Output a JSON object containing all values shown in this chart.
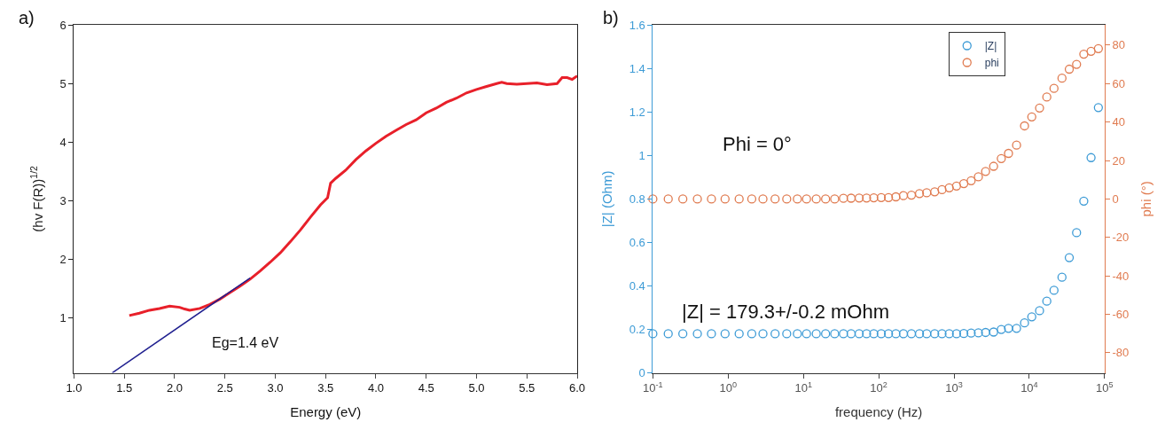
{
  "chart_data": [
    {
      "type": "line",
      "xlabel": "Energy (eV)",
      "ylabel": "(hv F(R))$^{1/2}$",
      "xlim": [
        1.0,
        6.0
      ],
      "ylim": [
        0.06,
        6
      ],
      "xticks": [
        {
          "value": 1.0,
          "label": "1.0"
        },
        1.5,
        {
          "value": 2.0,
          "label": "2.0"
        },
        2.5,
        {
          "value": 3.0,
          "label": "3.0"
        },
        3.5,
        {
          "value": 4.0,
          "label": "4.0"
        },
        4.5,
        {
          "value": 5.0,
          "label": "5.0"
        },
        5.5,
        {
          "value": 6.0,
          "label": "6.0"
        }
      ],
      "yticks": [
        1,
        2,
        3,
        4,
        5,
        6
      ],
      "legend": false,
      "marker": "none",
      "line_style": "solid",
      "series": [
        {
          "color": "#e8202a",
          "x": [
            1.55,
            1.65,
            1.75,
            1.85,
            1.95,
            2.05,
            2.1,
            2.15,
            2.25,
            2.35,
            2.45,
            2.55,
            2.65,
            2.75,
            2.85,
            2.95,
            3.05,
            3.15,
            3.25,
            3.35,
            3.45,
            3.52,
            3.55,
            3.6,
            3.7,
            3.8,
            3.9,
            4.0,
            4.1,
            4.2,
            4.3,
            4.4,
            4.5,
            4.6,
            4.7,
            4.8,
            4.9,
            5.0,
            5.1,
            5.2,
            5.25,
            5.3,
            5.4,
            5.5,
            5.6,
            5.7,
            5.8,
            5.85,
            5.9,
            5.95,
            6.0
          ],
          "values": [
            1.04,
            1.08,
            1.13,
            1.16,
            1.2,
            1.18,
            1.15,
            1.13,
            1.16,
            1.23,
            1.32,
            1.43,
            1.54,
            1.66,
            1.8,
            1.95,
            2.11,
            2.3,
            2.5,
            2.72,
            2.93,
            3.05,
            3.3,
            3.38,
            3.52,
            3.7,
            3.85,
            3.98,
            4.1,
            4.2,
            4.3,
            4.38,
            4.5,
            4.58,
            4.68,
            4.75,
            4.84,
            4.9,
            4.95,
            5.0,
            5.02,
            5.0,
            4.99,
            5.0,
            5.01,
            4.98,
            5.0,
            5.1,
            5.1,
            5.07,
            5.13
          ]
        },
        {
          "color": "#1f1f8f",
          "x": [
            1.38,
            2.75
          ],
          "values": [
            0.06,
            1.68
          ]
        }
      ],
      "annotations": [
        "a)",
        "Eg=1.4 eV"
      ]
    },
    {
      "type": "scatter",
      "xlabel": "frequency (Hz)",
      "ylabel": "|Z| (Ohm)",
      "y2label": "phi (°)",
      "log": "x",
      "xlim": [
        0.1,
        100000
      ],
      "ylim": [
        0,
        1.6
      ],
      "y2lim": [
        -90.5,
        90.5
      ],
      "xticks": [
        {
          "value": 0.1,
          "label": "10$^{-1}$"
        },
        {
          "value": 1,
          "label": "10$^{0}$"
        },
        {
          "value": 10,
          "label": "10$^{1}$"
        },
        {
          "value": 100,
          "label": "10$^{2}$"
        },
        {
          "value": 1000,
          "label": "10$^{3}$"
        },
        {
          "value": 10000,
          "label": "10$^{4}$"
        },
        {
          "value": 100000,
          "label": "10$^{5}$"
        }
      ],
      "yticks": [
        0,
        0.2,
        0.4,
        0.6,
        0.8,
        1,
        1.2,
        1.4,
        1.6
      ],
      "y2ticks": [
        -80,
        -60,
        -40,
        -20,
        0,
        20,
        40,
        60,
        80
      ],
      "legend": "top right",
      "marker": "circle",
      "x": [
        0.1,
        0.16,
        0.25,
        0.39,
        0.6,
        0.91,
        1.4,
        2.06,
        2.9,
        4.2,
        6.0,
        8.3,
        11,
        14.8,
        19.7,
        26,
        34,
        43,
        55,
        69,
        86,
        108,
        135,
        169,
        213,
        272,
        348,
        434,
        554,
        693,
        865,
        1080,
        1350,
        1690,
        2110,
        2630,
        3360,
        4250,
        5300,
        6780,
        8650,
        10800,
        13700,
        17100,
        21300,
        27200,
        34000,
        42500,
        53000,
        66200,
        82800
      ],
      "series": [
        {
          "name": "|Z|",
          "color": "#3d9bd6",
          "values": [
            0.18,
            0.18,
            0.18,
            0.18,
            0.18,
            0.18,
            0.18,
            0.18,
            0.18,
            0.18,
            0.18,
            0.18,
            0.18,
            0.18,
            0.18,
            0.18,
            0.18,
            0.18,
            0.18,
            0.18,
            0.18,
            0.18,
            0.18,
            0.18,
            0.18,
            0.18,
            0.18,
            0.18,
            0.18,
            0.18,
            0.18,
            0.18,
            0.181,
            0.183,
            0.184,
            0.186,
            0.188,
            0.2,
            0.205,
            0.205,
            0.23,
            0.258,
            0.286,
            0.33,
            0.38,
            0.44,
            0.53,
            0.645,
            0.79,
            0.99,
            1.22
          ]
        },
        {
          "name": "phi",
          "color": "#e07b50",
          "axis": "y2",
          "values": [
            0,
            0,
            0,
            0,
            0,
            0,
            0,
            0,
            0,
            0,
            0,
            0,
            0,
            0,
            0,
            0,
            0.3,
            0.4,
            0.5,
            0.5,
            0.6,
            0.7,
            0.7,
            1.1,
            1.7,
            2,
            2.8,
            3.2,
            3.7,
            4.8,
            5.8,
            6.7,
            8,
            9.5,
            11.5,
            14.3,
            17,
            21,
            23.7,
            28,
            38,
            42.7,
            47.3,
            53,
            57.5,
            62.8,
            67.5,
            70,
            75.3,
            76.8,
            78.2
          ]
        }
      ],
      "annotations": [
        "b)",
        "Phi = 0°",
        "|Z| = 179.3+/-0.2 mOhm"
      ]
    }
  ]
}
